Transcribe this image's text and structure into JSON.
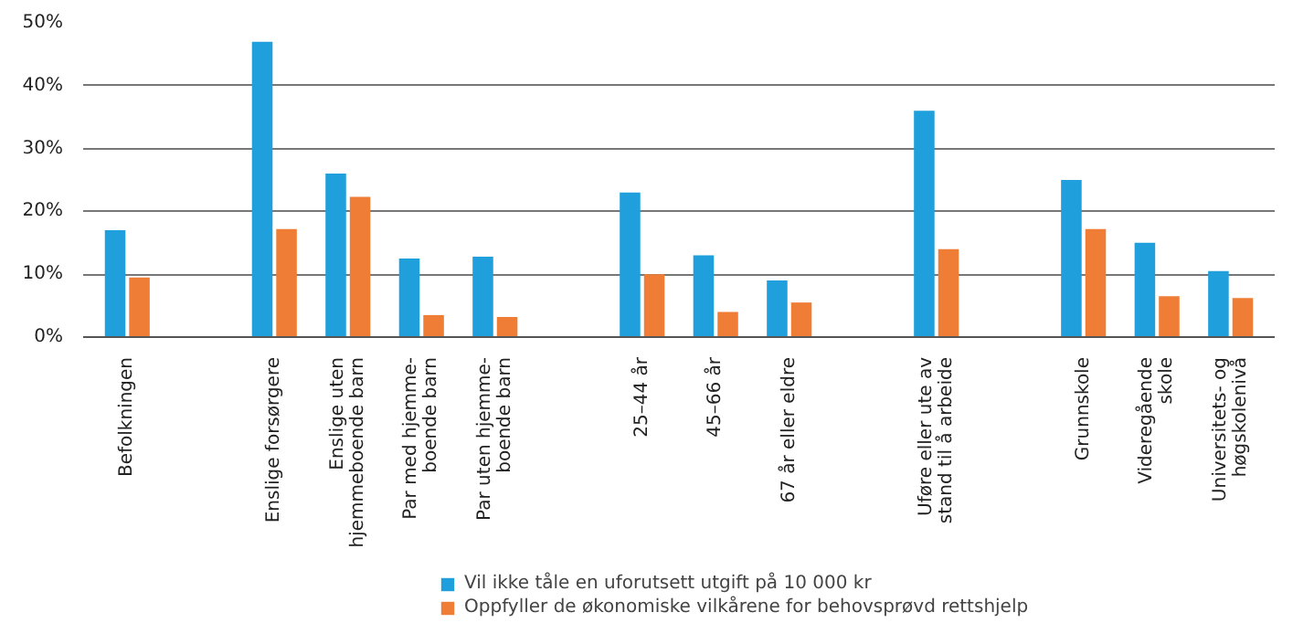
{
  "chart_data": {
    "type": "bar",
    "categories": [
      "Befolkningen",
      null,
      "Enslige forsørgere",
      "Enslige uten\nhjemmeboende barn",
      "Par med hjemme-\nboende barn",
      "Par uten hjemme-\nboende barn",
      null,
      "25–44 år",
      "45–66 år",
      "67 år eller eldre",
      null,
      "Uføre eller ute av\nstand til å arbeide",
      null,
      "Grunnskole",
      "Videregående\nskole",
      "Universitets- og\nhøgskolenivå"
    ],
    "series": [
      {
        "name": "Vil ikke tåle en uforutsett utgift på 10 000 kr",
        "color": "#1f9fdb",
        "values": [
          17,
          null,
          47,
          26,
          12.5,
          12.8,
          null,
          23,
          13,
          9,
          null,
          36,
          null,
          25,
          15,
          10.5
        ]
      },
      {
        "name": "Oppfyller de økonomiske vilkårene for behovsprøvd rettshjelp",
        "color": "#ef7d35",
        "values": [
          9.5,
          null,
          17.2,
          22.3,
          3.5,
          3.2,
          null,
          10,
          4,
          5.5,
          null,
          14,
          null,
          17.2,
          6.5,
          6.2
        ]
      }
    ],
    "ylim": [
      0,
      50
    ],
    "yticks": [
      {
        "value": 0,
        "label": "0%"
      },
      {
        "value": 10,
        "label": "10%"
      },
      {
        "value": 20,
        "label": "20%"
      },
      {
        "value": 30,
        "label": "30%"
      },
      {
        "value": 40,
        "label": "40%"
      },
      {
        "value": 50,
        "label": "50%"
      }
    ],
    "grid": "y",
    "legend": "bottom"
  }
}
